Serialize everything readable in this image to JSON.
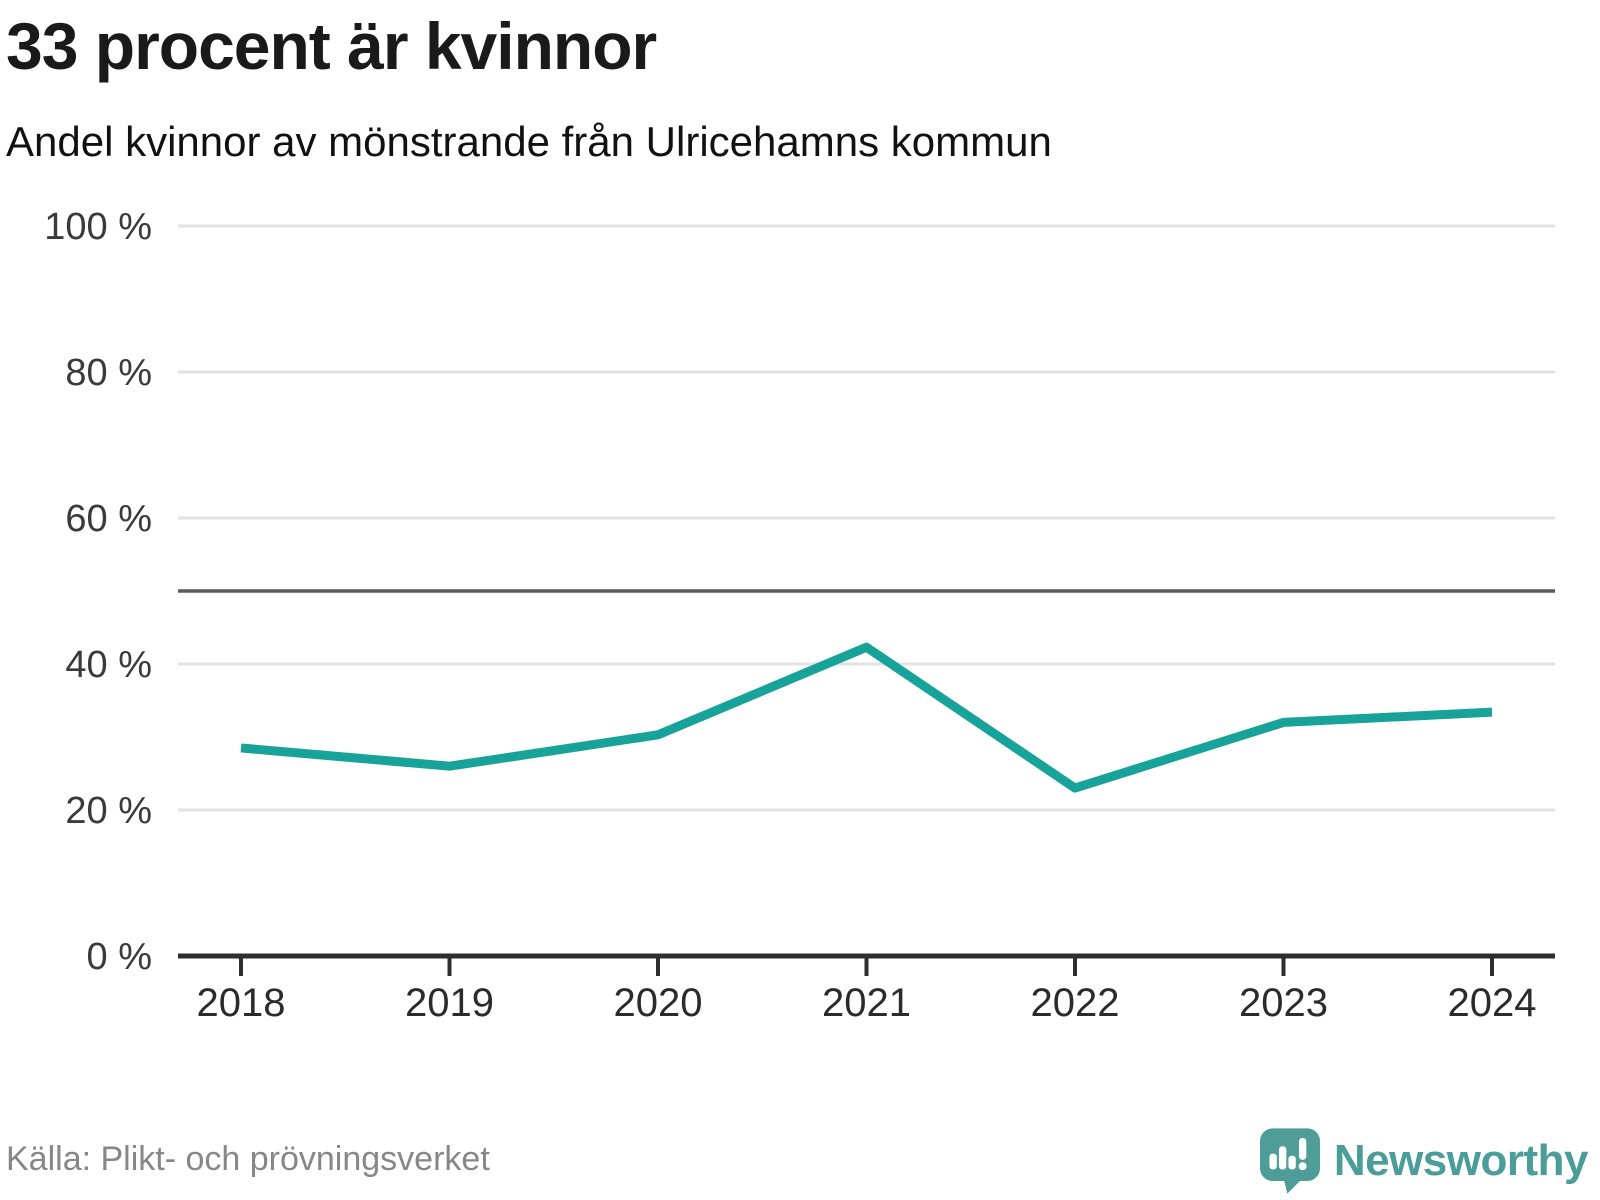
{
  "header": {
    "title": "33 procent är kvinnor",
    "subtitle": "Andel kvinnor av mönstrande från Ulricehamns kommun"
  },
  "chart_data": {
    "type": "line",
    "title": "33 procent är kvinnor",
    "subtitle": "Andel kvinnor av mönstrande från Ulricehamns kommun",
    "x": [
      2018,
      2019,
      2020,
      2021,
      2022,
      2023,
      2024
    ],
    "series": [
      {
        "name": "Andel kvinnor av mönstrande",
        "values": [
          28.5,
          26,
          30.3,
          42.3,
          23,
          32,
          33.4
        ]
      }
    ],
    "ylim": [
      0,
      100
    ],
    "yticks": [
      0,
      20,
      40,
      60,
      80,
      100
    ],
    "ytick_labels": [
      "0 %",
      "20 %",
      "40 %",
      "60 %",
      "80 %",
      "100 %"
    ],
    "reference_line": 50,
    "grid": true,
    "legend": "none",
    "xlabel": "",
    "ylabel": "",
    "line_color": "#17a29a"
  },
  "footer": {
    "source": "Källa: Plikt- och prövningsverket",
    "logo_text": "Newsworthy",
    "logo_color": "#4f9d99"
  }
}
